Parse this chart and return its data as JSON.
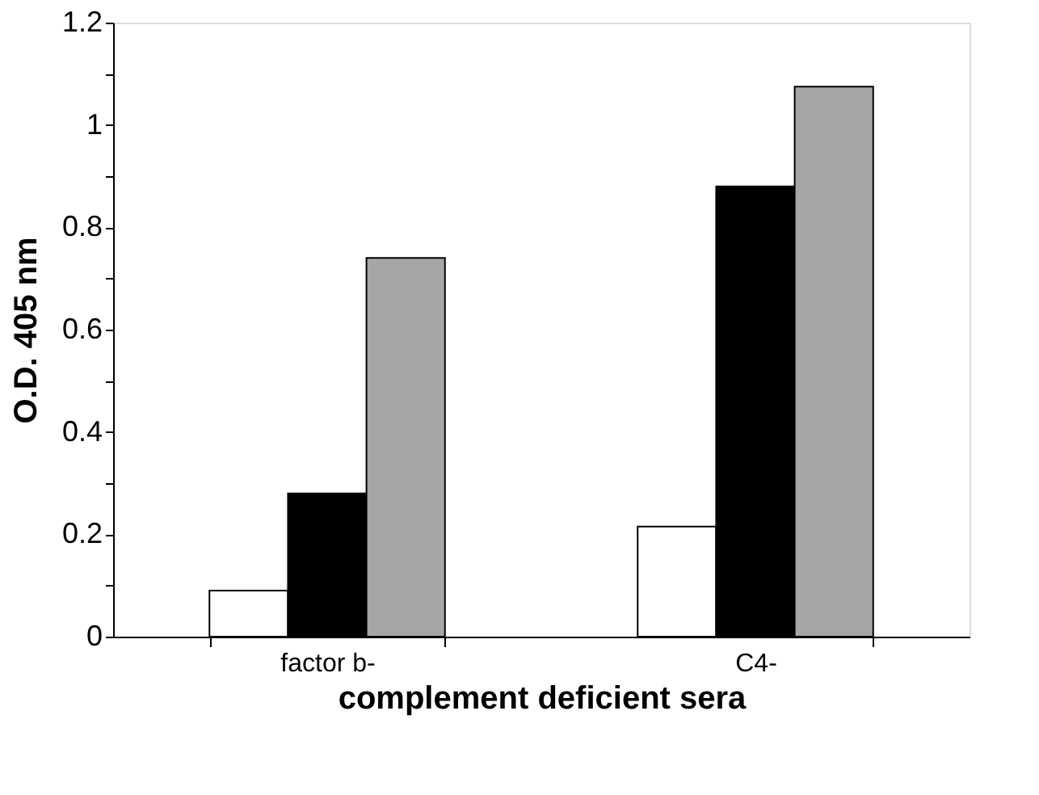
{
  "chart_data": {
    "type": "bar",
    "xlabel": "complement deficient sera",
    "ylabel": "O.D. 405 nm",
    "categories": [
      "factor b-",
      "C4-"
    ],
    "series": [
      {
        "color": "#ffffff",
        "values": [
          0.09,
          0.215
        ]
      },
      {
        "color": "#000000",
        "values": [
          0.28,
          0.88
        ]
      },
      {
        "color": "#a6a6a6",
        "values": [
          0.74,
          1.075
        ]
      }
    ],
    "ylim": [
      0,
      1.2
    ],
    "yticks": [
      0,
      {
        "value": 0.1,
        "label": null
      },
      0.2,
      {
        "value": 0.3,
        "label": null
      },
      0.4,
      {
        "value": 0.5,
        "label": null
      },
      0.6,
      {
        "value": 0.7,
        "label": null
      },
      0.8,
      {
        "value": 0.9,
        "label": null
      },
      1,
      {
        "value": 1.1,
        "label": null
      },
      1.2
    ],
    "grid": false
  }
}
